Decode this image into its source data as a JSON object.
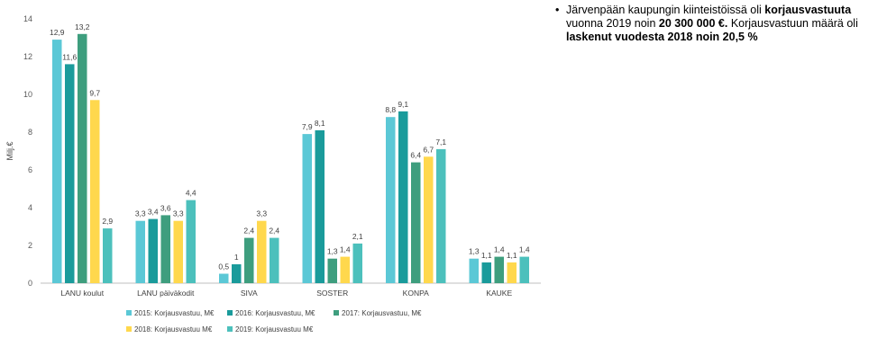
{
  "chart_data": {
    "type": "bar",
    "ylabel": "Milj.€",
    "ylim": [
      0,
      14
    ],
    "yticks": [
      0,
      2,
      4,
      6,
      8,
      10,
      12,
      14
    ],
    "categories": [
      "LANU koulut",
      "LANU päiväkodit",
      "SIVA",
      "SOSTER",
      "KONPA",
      "KAUKE"
    ],
    "series": [
      {
        "name": "2015: Korjausvastuu, M€",
        "color": "#5BC8D6",
        "values": [
          12.9,
          3.3,
          0.5,
          7.9,
          8.8,
          1.3
        ],
        "labels": [
          "12,9",
          "3,3",
          "0,5",
          "7,9",
          "8,8",
          "1,3"
        ]
      },
      {
        "name": "2016: Korjausvastuu, M€",
        "color": "#1A9B9B",
        "values": [
          11.6,
          3.4,
          1,
          8.1,
          9.1,
          1.1
        ],
        "labels": [
          "11,6",
          "3,4",
          "1",
          "8,1",
          "9,1",
          "1,1"
        ]
      },
      {
        "name": "2017: Korjausvastuu, M€",
        "color": "#3E9E7E",
        "values": [
          13.2,
          3.6,
          2.4,
          1.3,
          6.4,
          1.4
        ],
        "labels": [
          "13,2",
          "3,6",
          "2,4",
          "1,3",
          "6,4",
          "1,4"
        ]
      },
      {
        "name": "2018: Korjausvastuu M€",
        "color": "#FFD84D",
        "values": [
          9.7,
          3.3,
          3.3,
          1.4,
          6.7,
          1.1
        ],
        "labels": [
          "9,7",
          "3,3",
          "3,3",
          "1,4",
          "6,7",
          "1,1"
        ]
      },
      {
        "name": "2019: Korjausvastuu M€",
        "color": "#4CC0BC",
        "values": [
          2.9,
          4.4,
          2.4,
          2.1,
          7.1,
          1.4
        ],
        "labels": [
          "2,9",
          "4,4",
          "2,4",
          "2,1",
          "7,1",
          "1,4"
        ]
      }
    ],
    "grid": false,
    "legend": "bottom"
  },
  "note": {
    "bullet": "•",
    "t1": "Järvenpään kaupungin kiinteistöissä oli ",
    "b1": "korjausvastuuta",
    "t2": " vuonna 2019 noin ",
    "b2": "20 300 000 €.",
    "t3": " Korjausvastuun määrä oli ",
    "b3": "laskenut vuodesta 2018 noin 20,5 %"
  }
}
